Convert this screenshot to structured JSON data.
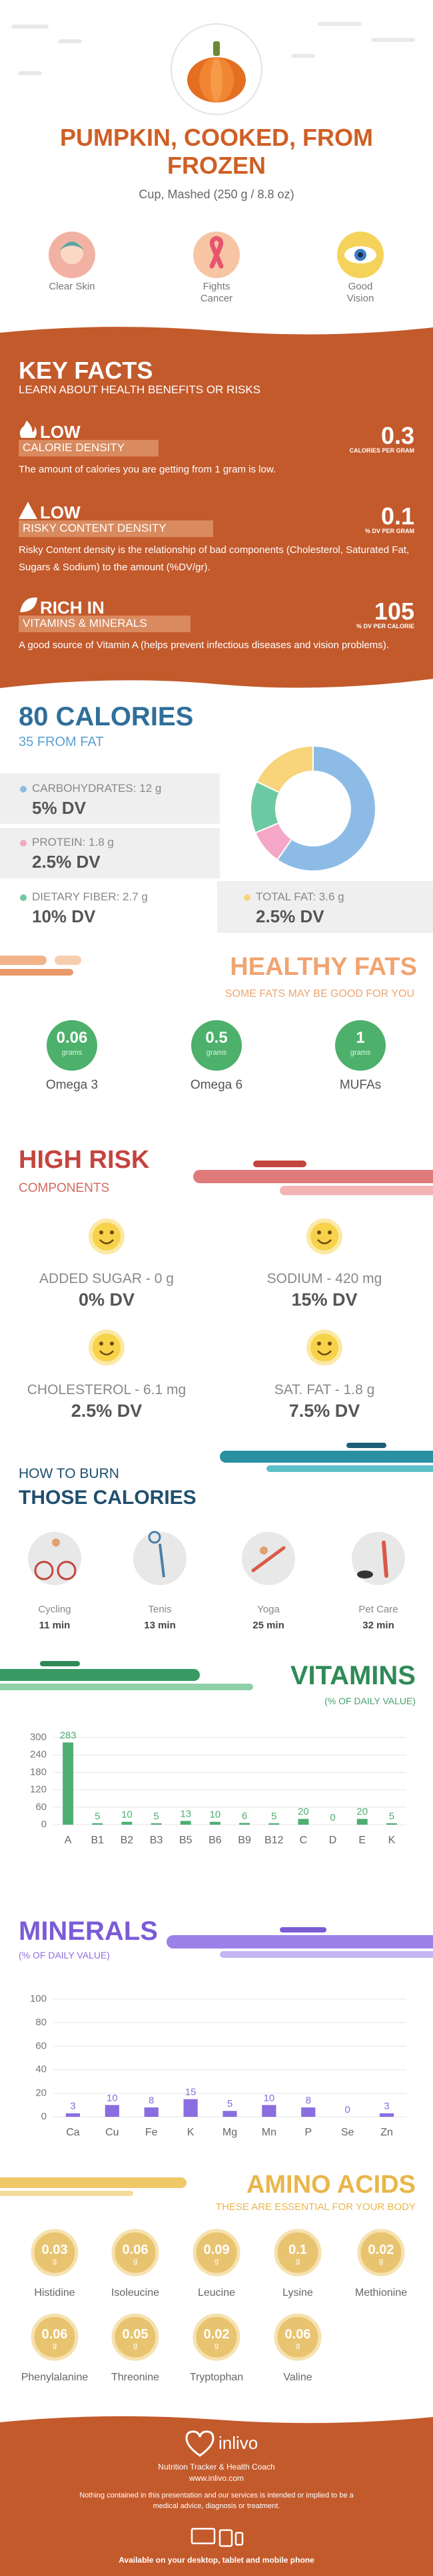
{
  "header": {
    "title": "PUMPKIN, COOKED, FROM FROZEN",
    "serving": "Cup, Mashed (250 g / 8.8 oz)"
  },
  "benefits": [
    "Clear Skin",
    "Fights Cancer",
    "Good Vision"
  ],
  "key_facts": {
    "title": "KEY FACTS",
    "subtitle": "LEARN ABOUT HEALTH BENEFITS OR RISKS",
    "facts": [
      {
        "level": "LOW",
        "name": "CALORIE DENSITY",
        "value": 0.3,
        "unit": "CALORIES PER GRAM",
        "description": "The amount of calories you are getting from 1 gram is low."
      },
      {
        "level": "LOW",
        "name": "RISKY CONTENT DENSITY",
        "value": 0.1,
        "unit": "% DV PER GRAM",
        "description": "Risky Content density is the relationship of bad components (Cholesterol, Saturated Fat, Sugars & Sodium) to the amount (%DV/gr)."
      },
      {
        "level": "RICH IN",
        "name": "VITAMINS & MINERALS",
        "value": 105,
        "unit": "% DV PER CALORIE",
        "description": "A good source of Vitamin A (helps prevent infectious diseases and vision problems)."
      }
    ]
  },
  "calories": {
    "title": "80 CALORIES",
    "subtitle": "35 FROM FAT",
    "nutrients": [
      {
        "name": "CARBOHYDRATES:",
        "amount": 12,
        "unit": "g",
        "dv": "5% DV",
        "color": "#8cbce6"
      },
      {
        "name": "PROTEIN:",
        "amount": 1.8,
        "unit": "g",
        "dv": "2.5% DV",
        "color": "#f5a7c7"
      },
      {
        "name": "DIETARY FIBER:",
        "amount": 2.7,
        "unit": "g",
        "dv": "10% DV",
        "color": "#6dc9a2"
      },
      {
        "name": "TOTAL FAT:",
        "amount": 3.6,
        "unit": "g",
        "dv": "2.5% DV",
        "color": "#f8d47a"
      }
    ]
  },
  "healthy_fats": {
    "title": "HEALTHY FATS",
    "subtitle": "SOME FATS MAY BE GOOD FOR YOU",
    "items": [
      {
        "name": "Omega 3",
        "value": 0.06,
        "unit": "grams"
      },
      {
        "name": "Omega 6",
        "value": 0.5,
        "unit": "grams"
      },
      {
        "name": "MUFAs",
        "value": 1,
        "unit": "grams"
      }
    ]
  },
  "high_risk": {
    "title": "HIGH RISK",
    "subtitle": "COMPONENTS",
    "items": [
      {
        "name": "ADDED SUGAR - 0 g",
        "dv": "0% DV"
      },
      {
        "name": "SODIUM - 420 mg",
        "dv": "15% DV"
      },
      {
        "name": "CHOLESTEROL - 6.1 mg",
        "dv": "2.5% DV"
      },
      {
        "name": "SAT. FAT - 1.8 g",
        "dv": "7.5% DV"
      }
    ]
  },
  "burn": {
    "title": "HOW TO BURN",
    "subtitle": "THOSE CALORIES",
    "activities": [
      {
        "name": "Cycling",
        "minutes": 11,
        "unit": "min"
      },
      {
        "name": "Tenis",
        "minutes": 13,
        "unit": "min"
      },
      {
        "name": "Yoga",
        "minutes": 25,
        "unit": "min"
      },
      {
        "name": "Pet Care",
        "minutes": 32,
        "unit": "min"
      }
    ]
  },
  "chart_data": [
    {
      "type": "bar",
      "title": "VITAMINS",
      "subtitle": "(% OF DAILY VALUE)",
      "categories": [
        "A",
        "B1",
        "B2",
        "B3",
        "B5",
        "B6",
        "B9",
        "B12",
        "C",
        "D",
        "E",
        "K"
      ],
      "values": [
        283,
        5,
        10,
        5,
        13,
        10,
        6,
        5,
        20,
        0,
        20,
        5
      ],
      "color": "#4fae72",
      "ylim": [
        0,
        300
      ],
      "yticks": [
        0,
        60,
        120,
        180,
        240,
        300
      ],
      "grid": true
    },
    {
      "type": "bar",
      "title": "MINERALS",
      "subtitle": "(% OF DAILY VALUE)",
      "categories": [
        "Ca",
        "Cu",
        "Fe",
        "K",
        "Mg",
        "Mn",
        "P",
        "Se",
        "Zn"
      ],
      "values": [
        3,
        10,
        8,
        15,
        5,
        10,
        8,
        0,
        3
      ],
      "color": "#8a6de0",
      "ylim": [
        0,
        100
      ],
      "yticks": [
        0,
        20,
        40,
        60,
        80,
        100
      ],
      "grid": true
    }
  ],
  "amino_acids": {
    "title": "AMINO ACIDS",
    "subtitle": "THESE ARE ESSENTIAL FOR YOUR BODY",
    "items": [
      {
        "name": "Histidine",
        "value": 0.03,
        "unit": "g"
      },
      {
        "name": "Isoleucine",
        "value": 0.06,
        "unit": "g"
      },
      {
        "name": "Leucine",
        "value": 0.09,
        "unit": "g"
      },
      {
        "name": "Lysine",
        "value": 0.1,
        "unit": "g"
      },
      {
        "name": "Methionine",
        "value": 0.02,
        "unit": "g"
      },
      {
        "name": "Phenylalanine",
        "value": 0.06,
        "unit": "g"
      },
      {
        "name": "Threonine",
        "value": 0.05,
        "unit": "g"
      },
      {
        "name": "Tryptophan",
        "value": 0.02,
        "unit": "g"
      },
      {
        "name": "Valine",
        "value": 0.06,
        "unit": "g"
      }
    ]
  },
  "footer": {
    "brand": "inlivo",
    "tagline": "Nutrition Tracker & Health Coach",
    "url": "www.inlivo.com",
    "disclaimer": "Nothing contained in this presentation and our services is intended or implied to be a medical advice, diagnosis or treatment.",
    "availability": "Available on your desktop, tablet and mobile phone"
  }
}
